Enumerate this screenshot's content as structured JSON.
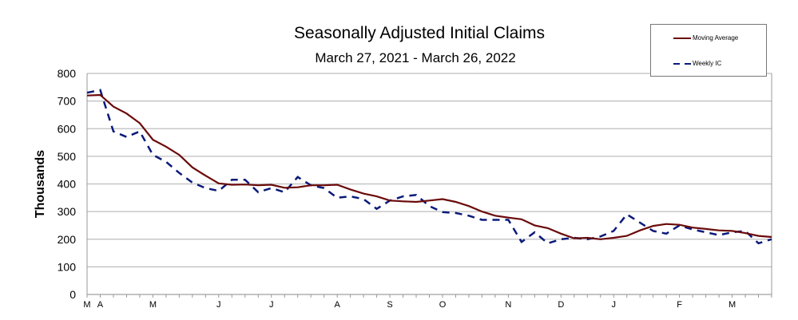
{
  "chart_data": {
    "type": "line",
    "title": "Seasonally Adjusted Initial Claims",
    "subtitle": "March 27, 2021 - March 26, 2022",
    "ylabel": "Thousands",
    "xlabel": "",
    "ylim": [
      0,
      800
    ],
    "yticks": [
      0,
      100,
      200,
      300,
      400,
      500,
      600,
      700,
      800
    ],
    "grid": true,
    "legend_position": "top-right",
    "month_labels": [
      {
        "label": "M",
        "week": 0
      },
      {
        "label": "A",
        "week": 1
      },
      {
        "label": "M",
        "week": 5
      },
      {
        "label": "J",
        "week": 10
      },
      {
        "label": "J",
        "week": 14
      },
      {
        "label": "A",
        "week": 19
      },
      {
        "label": "S",
        "week": 23
      },
      {
        "label": "O",
        "week": 27
      },
      {
        "label": "N",
        "week": 32
      },
      {
        "label": "D",
        "week": 36
      },
      {
        "label": "J",
        "week": 40
      },
      {
        "label": "F",
        "week": 45
      },
      {
        "label": "M",
        "week": 49
      }
    ],
    "series": [
      {
        "name": "Moving Average",
        "color": "#6b0a0a",
        "style": "solid",
        "values": [
          720,
          722,
          680,
          655,
          620,
          560,
          535,
          505,
          460,
          430,
          402,
          397,
          398,
          395,
          397,
          386,
          388,
          395,
          395,
          397,
          380,
          365,
          355,
          340,
          337,
          335,
          340,
          345,
          335,
          320,
          300,
          285,
          278,
          272,
          250,
          240,
          220,
          203,
          205,
          200,
          205,
          212,
          232,
          248,
          255,
          252,
          242,
          237,
          232,
          230,
          222,
          212,
          208
        ]
      },
      {
        "name": "Weekly IC",
        "color": "#0a1a7a",
        "style": "dashed",
        "values": [
          730,
          740,
          590,
          570,
          590,
          505,
          480,
          440,
          405,
          385,
          375,
          415,
          415,
          370,
          385,
          370,
          425,
          395,
          385,
          350,
          355,
          345,
          310,
          340,
          355,
          360,
          320,
          298,
          295,
          285,
          270,
          270,
          270,
          190,
          225,
          185,
          200,
          205,
          200,
          210,
          230,
          290,
          260,
          230,
          220,
          250,
          235,
          225,
          215,
          225,
          230,
          185,
          200
        ]
      }
    ]
  }
}
